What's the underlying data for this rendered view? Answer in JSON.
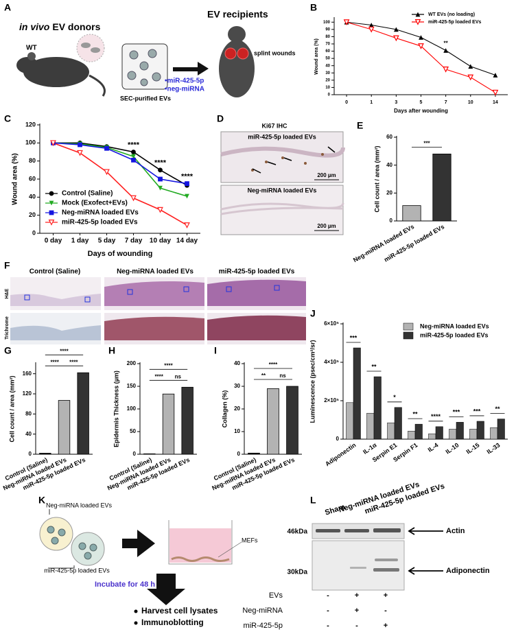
{
  "panel_labels": [
    "A",
    "B",
    "C",
    "D",
    "E",
    "F",
    "G",
    "H",
    "I",
    "J",
    "K",
    "L"
  ],
  "panel_a": {
    "donors_title": [
      "in vivo",
      "EV donors"
    ],
    "donor": "WT",
    "purification": "SEC-purified EVs",
    "cargo": [
      "•miR-425-5p",
      "•neg-miRNA"
    ],
    "recipients_title": "EV recipients",
    "wound_label": "splint wounds"
  },
  "panel_d": {
    "title": "Ki67 IHC",
    "images": [
      {
        "label": "miR-425-5p loaded EVs",
        "scale": "200 µm"
      },
      {
        "label": "Neg-miRNA loaded EVs",
        "scale": "200 µm"
      }
    ]
  },
  "panel_f": {
    "columns": [
      "Control (Saline)",
      "Neg-miRNA loaded EVs",
      "miR-425-5p loaded EVs"
    ],
    "rows": [
      "H&E",
      "Trichrome"
    ]
  },
  "panel_k": {
    "groups": [
      "Neg-miRNA loaded EVs",
      "miR-425-5p loaded EVs"
    ],
    "cells": "MEFs",
    "step": "Incubate for 48 h",
    "bullets": [
      "Harvest cell lysates",
      "Immunoblotting"
    ]
  },
  "panel_l": {
    "lanes": [
      "Sham",
      "Neg-miRNA loaded EVs",
      "miR-425-5p loaded EVs"
    ],
    "markers": [
      "46kDa",
      "30kDa"
    ],
    "bands": [
      "Actin",
      "Adiponectin"
    ],
    "conditions": [
      "EVs",
      "Neg-miRNA",
      "miR-425-5p"
    ],
    "matrix": [
      [
        "-",
        "+",
        "+"
      ],
      [
        "-",
        "+",
        "-"
      ],
      [
        "-",
        "-",
        "+"
      ]
    ]
  },
  "chart_data": [
    {
      "type": "line",
      "categories": [
        "0",
        "1",
        "3",
        "5",
        "7",
        "10",
        "14"
      ],
      "series": [
        {
          "name": "WT EVs (no loading)",
          "color": "#000000",
          "marker": "triangle-up",
          "values": [
            100,
            96,
            90,
            79,
            61,
            39,
            27
          ]
        },
        {
          "name": "miR-425-5p loaded EVs",
          "color": "#ff0000",
          "marker": "triangle-down-open",
          "values": [
            100,
            90,
            78,
            67,
            35,
            24,
            3
          ]
        }
      ],
      "ylim": [
        0,
        105
      ],
      "yticks": [
        0,
        10,
        20,
        30,
        40,
        50,
        60,
        70,
        80,
        90,
        100
      ],
      "ylabel": "Wound area (%)",
      "xlabel": "Days after wounding",
      "annotations": [
        null,
        null,
        null,
        null,
        "**",
        null,
        null
      ],
      "legend": "upper right"
    },
    {
      "type": "line",
      "categories": [
        "0 day",
        "1 day",
        "5 day",
        "7 day",
        "10 day",
        "14 day"
      ],
      "series": [
        {
          "name": "Control (Saline)",
          "color": "#000000",
          "marker": "circle",
          "values": [
            100,
            100,
            96,
            90,
            70,
            53
          ]
        },
        {
          "name": "Mock (Exofect+EVs)",
          "color": "#22aa22",
          "marker": "triangle-down",
          "values": [
            100,
            99,
            95,
            85,
            50,
            41
          ]
        },
        {
          "name": "Neg-miRNA loaded  EVs",
          "color": "#1515e0",
          "marker": "square",
          "values": [
            100,
            98,
            94,
            81,
            60,
            55
          ]
        },
        {
          "name": "miR-425-5p loaded EVs",
          "color": "#ff2020",
          "marker": "triangle-down-open",
          "values": [
            100,
            89,
            68,
            39,
            26,
            9
          ]
        }
      ],
      "ylim": [
        0,
        120
      ],
      "yticks": [
        0,
        20,
        40,
        60,
        80,
        100,
        120
      ],
      "ylabel": "Wound area (%)",
      "xlabel": "Days of wounding",
      "annotations": [
        null,
        null,
        null,
        "****",
        "****",
        "****"
      ],
      "legend": "lower left"
    },
    {
      "type": "bar",
      "categories": [
        "Neg-miRNA loaded EVs",
        "miR-425-5p loaded EVs"
      ],
      "values": [
        11,
        48
      ],
      "colors": [
        "#b3b3b3",
        "#333333"
      ],
      "ylim": [
        0,
        60
      ],
      "yticks": [
        0,
        20,
        40,
        60
      ],
      "ylabel": "Cell count / area (mm²)",
      "significance": [
        "***"
      ]
    },
    {
      "type": "bar",
      "categories": [
        "Control (Saline)",
        "Neg-miRNA loaded EVs",
        "miR-425-5p loaded EVs"
      ],
      "values": [
        2,
        107,
        162
      ],
      "colors": [
        "#000000",
        "#b3b3b3",
        "#333333"
      ],
      "ylim": [
        0,
        180
      ],
      "yticks": [
        0,
        40,
        80,
        120,
        160
      ],
      "ylabel": "Cell count / area (mm²)",
      "significance": [
        "****",
        "****",
        "****"
      ]
    },
    {
      "type": "bar",
      "categories": [
        "Control (Saline)",
        "Neg-miRNA loaded EVs",
        "miR-425-5p loaded EVs"
      ],
      "values": [
        1,
        133,
        148
      ],
      "colors": [
        "#000000",
        "#b3b3b3",
        "#333333"
      ],
      "ylim": [
        0,
        200
      ],
      "yticks": [
        0,
        50,
        100,
        150,
        200
      ],
      "ylabel": "Epidermis Thickness (µm)",
      "significance": [
        "****",
        "****",
        "ns"
      ]
    },
    {
      "type": "bar",
      "categories": [
        "Control (Saline)",
        "Neg-miRNA loaded EVs",
        "miR-425-5p loaded EVs"
      ],
      "values": [
        0.5,
        29,
        30
      ],
      "colors": [
        "#000000",
        "#b3b3b3",
        "#333333"
      ],
      "ylim": [
        0,
        40
      ],
      "yticks": [
        0,
        10,
        20,
        30,
        40
      ],
      "ylabel": "Collagen (%)",
      "significance": [
        "****",
        "**",
        "ns"
      ]
    },
    {
      "type": "bar",
      "categories": [
        "Adiponectin",
        "IL-1α",
        "Serpin E1",
        "Serpin F1",
        "IL-4",
        "IL-10",
        "IL-15",
        "IL-33"
      ],
      "series": [
        {
          "name": "Neg-miRNA loaded EVs",
          "color": "#b3b3b3",
          "values": [
            190000,
            135000,
            85000,
            42000,
            28000,
            52000,
            52000,
            60000
          ]
        },
        {
          "name": "miR-425-5p loaded EVs",
          "color": "#333333",
          "values": [
            475000,
            325000,
            165000,
            78000,
            65000,
            88000,
            93000,
            105000
          ]
        }
      ],
      "ylim": [
        0,
        600000
      ],
      "yticks": [
        0,
        {
          "value": 200000,
          "label": "2×10⁵"
        },
        {
          "value": 400000,
          "label": "4×10⁵"
        },
        {
          "value": 600000,
          "label": "6×10⁵"
        }
      ],
      "ylabel": "Luminescence (psec/cm²/sr)",
      "annotations": [
        "***",
        "**",
        "*",
        "**",
        "****",
        "***",
        "***",
        "**"
      ],
      "legend": "upper right"
    }
  ]
}
